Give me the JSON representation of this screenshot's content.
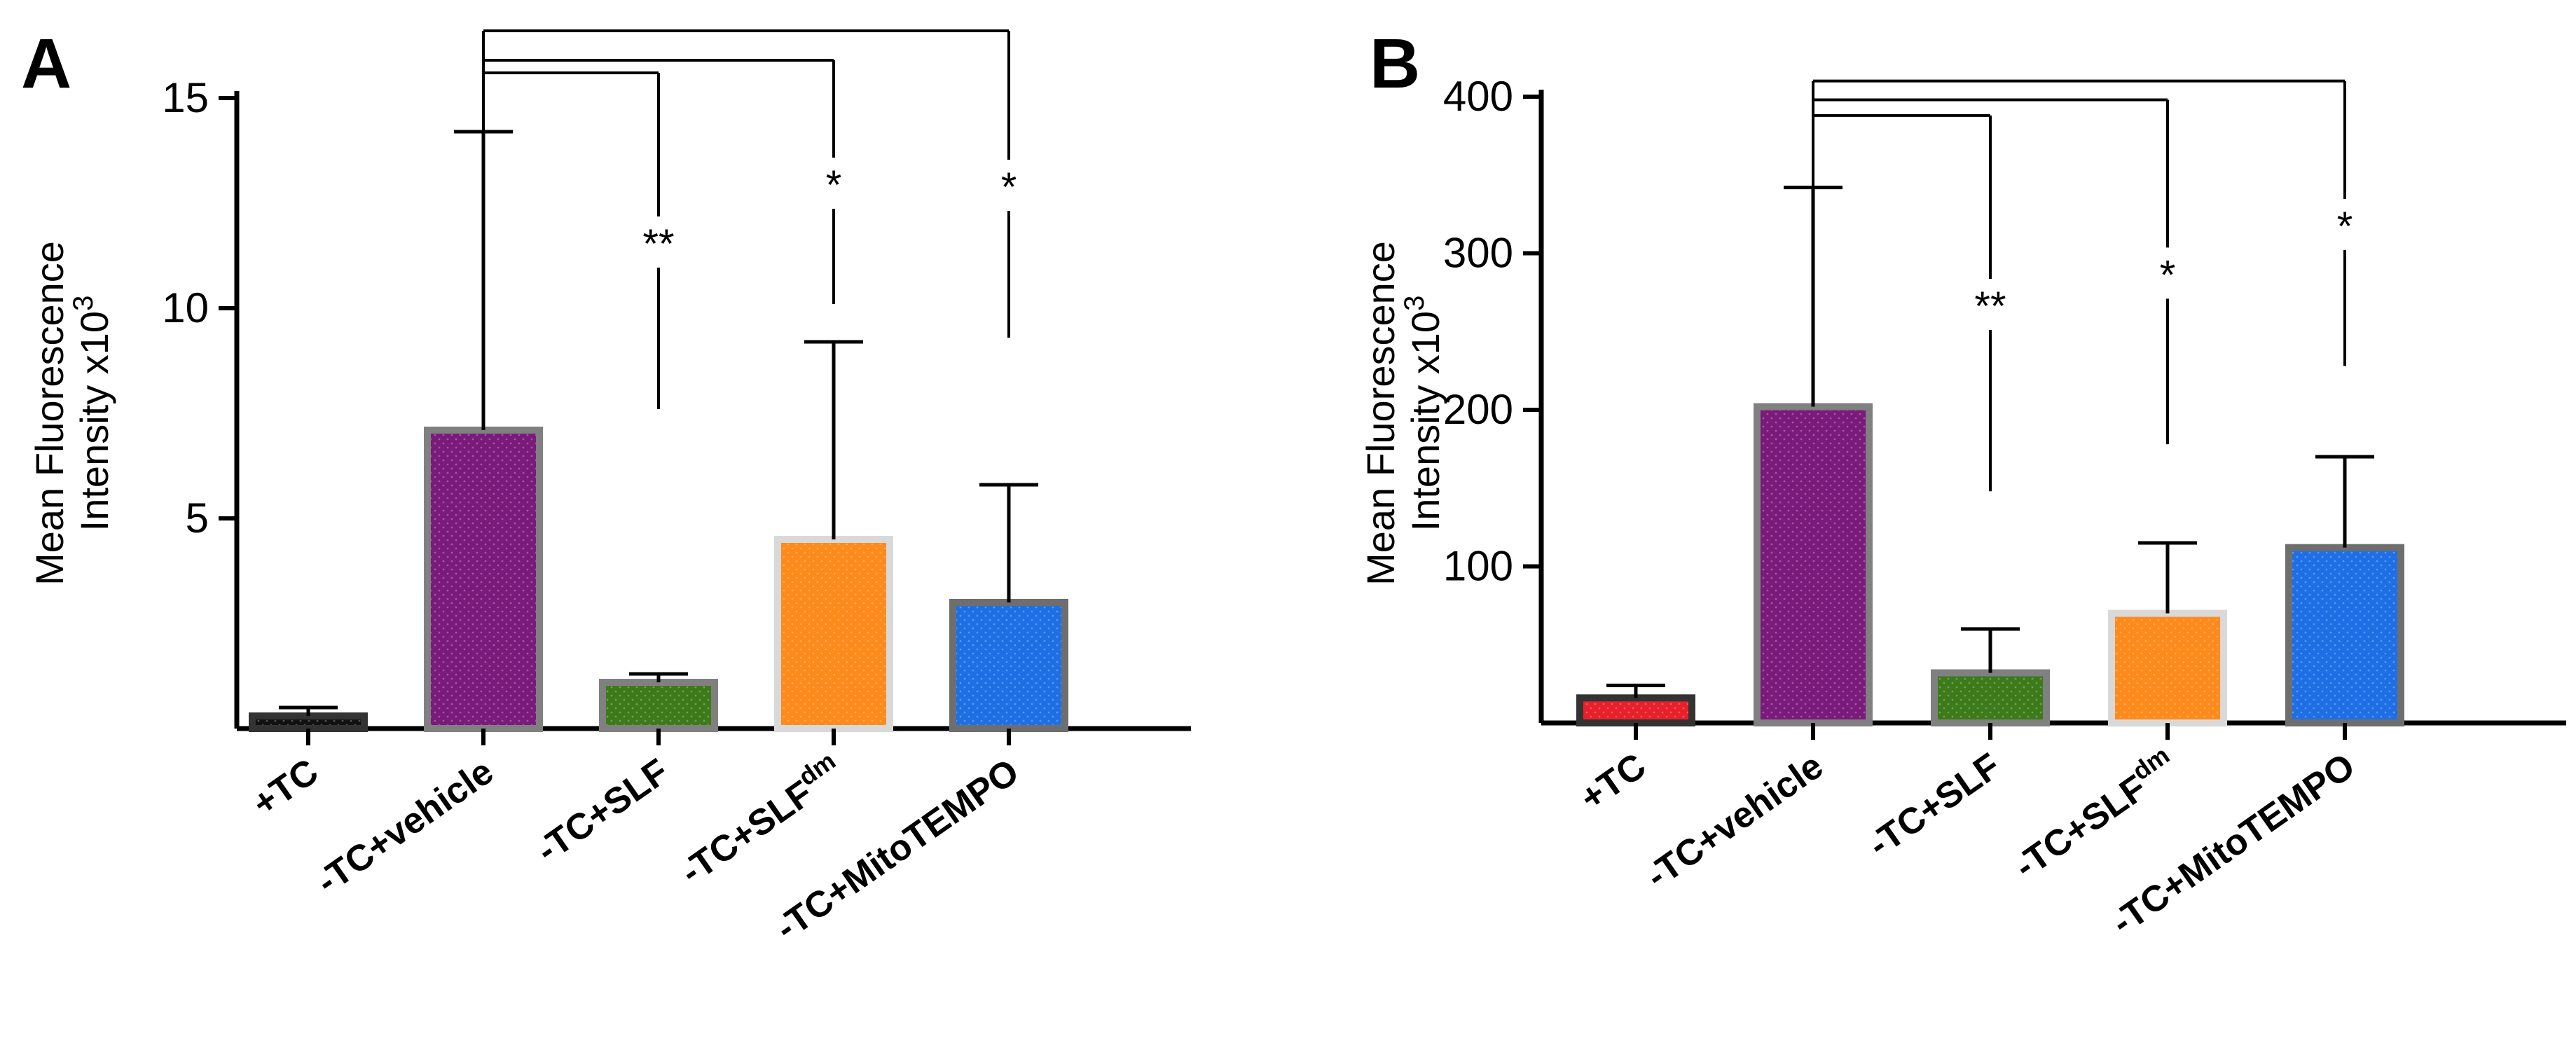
{
  "figure": {
    "y_title_line1": "Mean Fluorescence",
    "y_title_line2": "Intensity x10",
    "y_title_sup": "3"
  },
  "chart_data": [
    {
      "panel": "A",
      "type": "bar",
      "categories": [
        "+TC",
        "-TC+vehicle",
        "-TC+SLF",
        "-TC+SLF",
        "-TC+MitoTEMPO"
      ],
      "category_superscripts": [
        "",
        "",
        "",
        "dm",
        ""
      ],
      "values": [
        0.3,
        7.1,
        1.1,
        4.5,
        3.0
      ],
      "errors": [
        0.2,
        7.1,
        0.2,
        4.7,
        2.8
      ],
      "bar_colors": [
        "#111111",
        "#7a1a7a",
        "#3c7a1a",
        "#ff8a1c",
        "#1e6fe6"
      ],
      "bar_edge_colors": [
        "#333333",
        "#808080",
        "#808080",
        "#d9d9d9",
        "#6e6e6e"
      ],
      "ylim": [
        0,
        15
      ],
      "yticks": [
        5,
        10,
        15
      ],
      "ylabel": "Mean Fluorescence Intensity x10^3",
      "comparisons": [
        {
          "from": 1,
          "to": 2,
          "label": "**",
          "bracket_y": 15.6,
          "line_end": 7.6
        },
        {
          "from": 1,
          "to": 3,
          "label": "*",
          "bracket_y": 15.9,
          "line_end": 10.1
        },
        {
          "from": 1,
          "to": 4,
          "label": "*",
          "bracket_y": 16.6,
          "line_end": 9.3
        }
      ]
    },
    {
      "panel": "B",
      "type": "bar",
      "categories": [
        "+TC",
        "-TC+vehicle",
        "-TC+SLF",
        "-TC+SLF",
        "-TC+MitoTEMPO"
      ],
      "category_superscripts": [
        "",
        "",
        "",
        "dm",
        ""
      ],
      "values": [
        16,
        202,
        32,
        70,
        112
      ],
      "errors": [
        8,
        140,
        28,
        45,
        58
      ],
      "bar_colors": [
        "#e8202a",
        "#7a1a7a",
        "#3c7a1a",
        "#ff8a1c",
        "#1e6fe6"
      ],
      "bar_edge_colors": [
        "#333333",
        "#808080",
        "#808080",
        "#d9d9d9",
        "#6e6e6e"
      ],
      "ylim": [
        0,
        400
      ],
      "yticks": [
        100,
        200,
        300,
        400
      ],
      "ylabel": "Mean Fluorescence Intensity x10^3",
      "comparisons": [
        {
          "from": 1,
          "to": 2,
          "label": "**",
          "bracket_y": 388,
          "line_end": 148
        },
        {
          "from": 1,
          "to": 3,
          "label": "*",
          "bracket_y": 398,
          "line_end": 178
        },
        {
          "from": 1,
          "to": 4,
          "label": "*",
          "bracket_y": 410,
          "line_end": 228
        }
      ]
    }
  ]
}
